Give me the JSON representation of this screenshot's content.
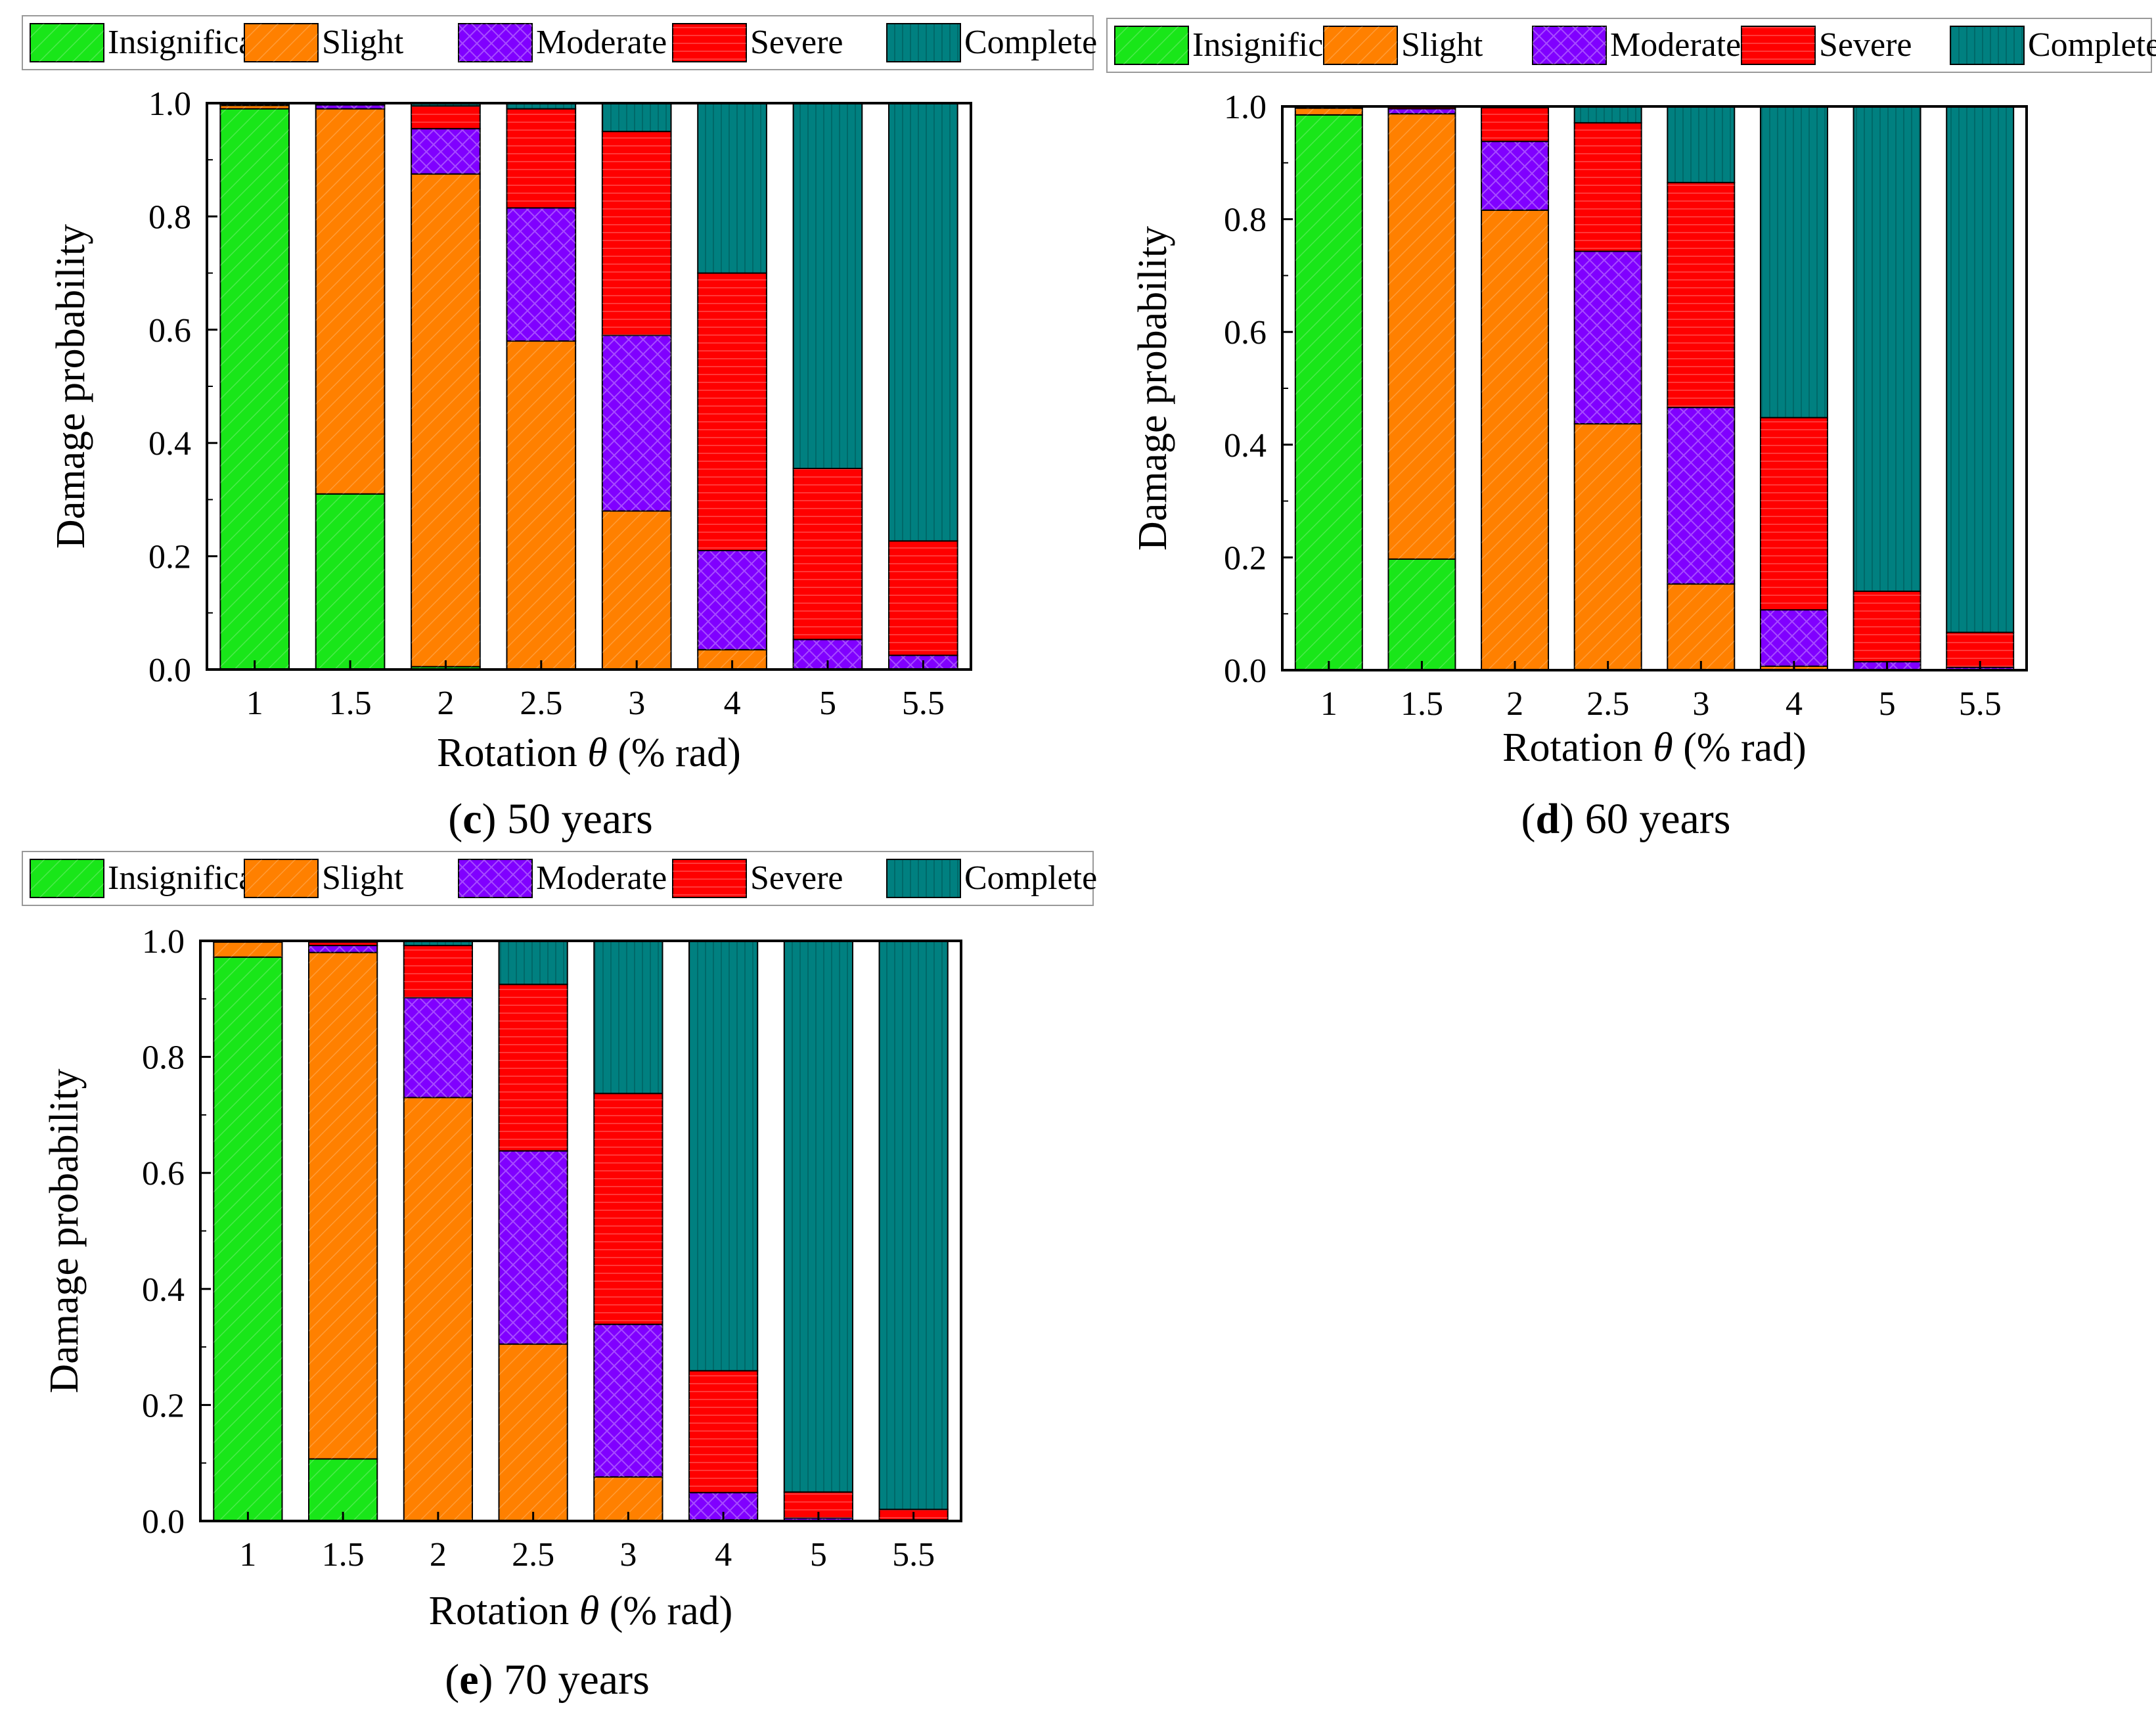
{
  "legend": {
    "labels": [
      "Insignificant",
      "Slight",
      "Moderate",
      "Severe",
      "Complete"
    ]
  },
  "colors": {
    "insignificant": "#19e619",
    "slight": "#ff8000",
    "moderate": "#8000ff",
    "severe": "#ff0000",
    "complete": "#008080"
  },
  "axes": {
    "ylabel": "Damage probability",
    "xlabel_prefix": "Rotation ",
    "xlabel_symbol": "θ",
    "xlabel_suffix": " (% rad)",
    "yticks": [
      "0.0",
      "0.2",
      "0.4",
      "0.6",
      "0.8",
      "1.0"
    ]
  },
  "chart_data": [
    {
      "type": "bar",
      "stacked": true,
      "caption_letter": "c",
      "caption_text": " 50 years",
      "title": "(c) 50 years",
      "xlabel": "Rotation θ (% rad)",
      "ylabel": "Damage probability",
      "ylim": [
        0,
        1
      ],
      "categories": [
        "1",
        "1.5",
        "2",
        "2.5",
        "3",
        "4",
        "5",
        "5.5"
      ],
      "series": [
        {
          "name": "Insignificant",
          "values": [
            0.99,
            0.31,
            0.005,
            0.0,
            0.0,
            0.0,
            0.0,
            0.0
          ]
        },
        {
          "name": "Slight",
          "values": [
            0.006,
            0.68,
            0.87,
            0.58,
            0.28,
            0.035,
            0.0,
            0.0
          ]
        },
        {
          "name": "Moderate",
          "values": [
            0.002,
            0.007,
            0.08,
            0.235,
            0.31,
            0.175,
            0.053,
            0.025
          ]
        },
        {
          "name": "Severe",
          "values": [
            0.001,
            0.002,
            0.04,
            0.175,
            0.36,
            0.49,
            0.302,
            0.202
          ]
        },
        {
          "name": "Complete",
          "values": [
            0.001,
            0.001,
            0.005,
            0.01,
            0.05,
            0.3,
            0.645,
            0.773
          ]
        }
      ]
    },
    {
      "type": "bar",
      "stacked": true,
      "caption_letter": "d",
      "caption_text": " 60 years",
      "title": "(d) 60 years",
      "xlabel": "Rotation θ (% rad)",
      "ylabel": "Damage probability",
      "ylim": [
        0,
        1
      ],
      "categories": [
        "1",
        "1.5",
        "2",
        "2.5",
        "3",
        "4",
        "5",
        "5.5"
      ],
      "series": [
        {
          "name": "Insignificant",
          "values": [
            0.985,
            0.197,
            0.001,
            0.0,
            0.0,
            0.0,
            0.0,
            0.0
          ]
        },
        {
          "name": "Slight",
          "values": [
            0.012,
            0.79,
            0.815,
            0.437,
            0.153,
            0.007,
            0.0,
            0.0
          ]
        },
        {
          "name": "Moderate",
          "values": [
            0.002,
            0.009,
            0.122,
            0.306,
            0.313,
            0.1,
            0.015,
            0.005
          ]
        },
        {
          "name": "Severe",
          "values": [
            0.001,
            0.003,
            0.06,
            0.228,
            0.399,
            0.341,
            0.125,
            0.062
          ]
        },
        {
          "name": "Complete",
          "values": [
            0.0,
            0.001,
            0.002,
            0.029,
            0.135,
            0.552,
            0.86,
            0.933
          ]
        }
      ]
    },
    {
      "type": "bar",
      "stacked": true,
      "caption_letter": "e",
      "caption_text": " 70 years",
      "title": "(e) 70 years",
      "xlabel": "Rotation θ (% rad)",
      "ylabel": "Damage probability",
      "ylim": [
        0,
        1
      ],
      "categories": [
        "1",
        "1.5",
        "2",
        "2.5",
        "3",
        "4",
        "5",
        "5.5"
      ],
      "series": [
        {
          "name": "Insignificant",
          "values": [
            0.972,
            0.107,
            0.0,
            0.0,
            0.0,
            0.0,
            0.0,
            0.0
          ]
        },
        {
          "name": "Slight",
          "values": [
            0.026,
            0.873,
            0.73,
            0.305,
            0.076,
            0.002,
            0.0,
            0.0
          ]
        },
        {
          "name": "Moderate",
          "values": [
            0.001,
            0.012,
            0.172,
            0.333,
            0.263,
            0.047,
            0.005,
            0.002
          ]
        },
        {
          "name": "Severe",
          "values": [
            0.001,
            0.006,
            0.09,
            0.287,
            0.398,
            0.21,
            0.045,
            0.018
          ]
        },
        {
          "name": "Complete",
          "values": [
            0.0,
            0.002,
            0.008,
            0.075,
            0.263,
            0.741,
            0.95,
            0.98
          ]
        }
      ]
    }
  ]
}
